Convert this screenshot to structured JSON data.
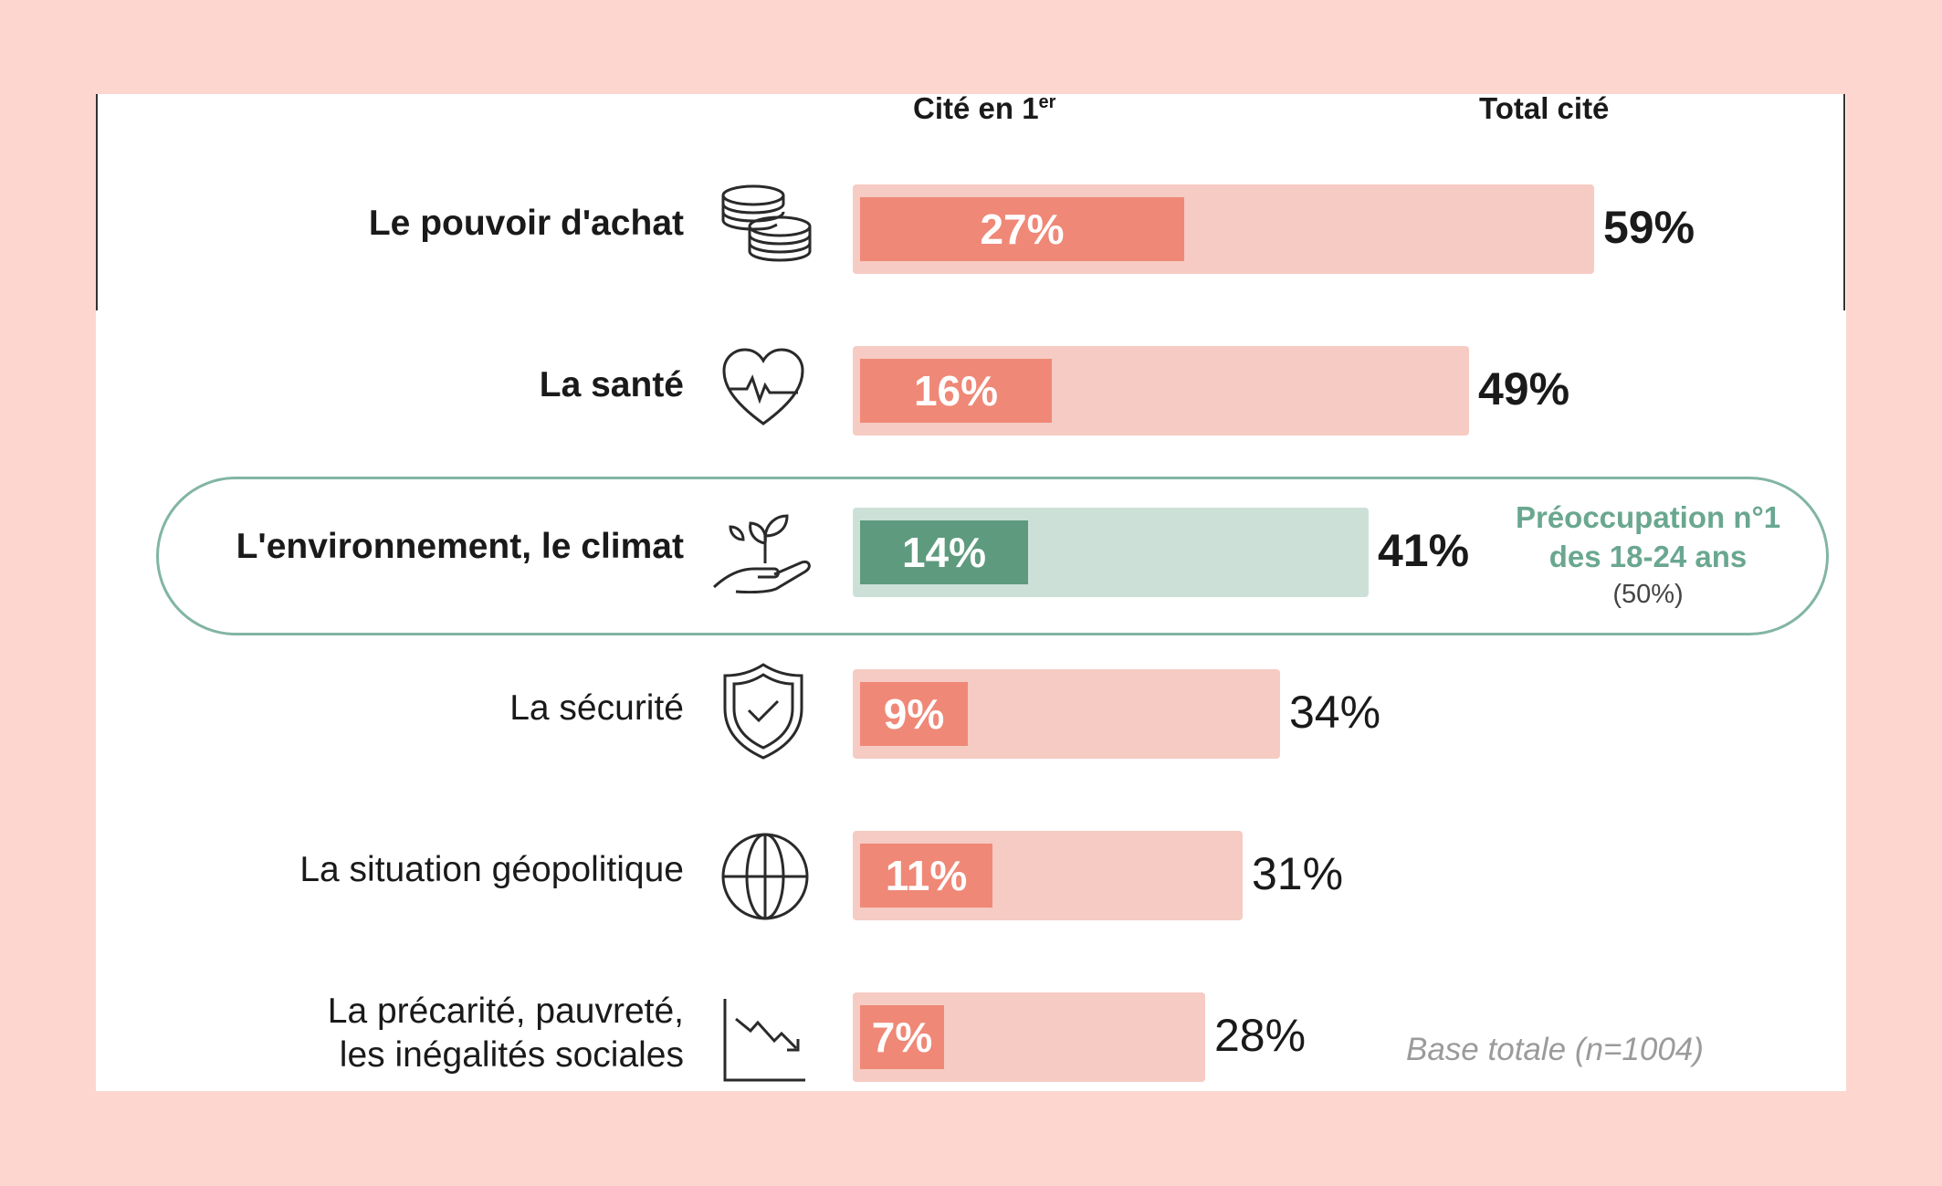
{
  "chart_data": {
    "type": "bar",
    "column_headers": {
      "first": "Cité en 1",
      "first_sup": "er",
      "total": "Total cité"
    },
    "categories": [
      "Le pouvoir d'achat",
      "La santé",
      "L'environnement, le climat",
      "La sécurité",
      "La situation géopolitique",
      "La précarité, pauvreté, les inégalités sociales"
    ],
    "category_lines": [
      [
        "Le pouvoir d'achat"
      ],
      [
        "La santé"
      ],
      [
        "L'environnement, le climat"
      ],
      [
        "La sécurité"
      ],
      [
        "La situation géopolitique"
      ],
      [
        "La précarité, pauvreté,",
        "les inégalités sociales"
      ]
    ],
    "series": [
      {
        "name": "Cité en 1er",
        "values": [
          27,
          16,
          14,
          9,
          11,
          7
        ]
      },
      {
        "name": "Total cité",
        "values": [
          59,
          49,
          41,
          34,
          31,
          28
        ]
      }
    ],
    "first_labels": [
      "27%",
      "16%",
      "14%",
      "9%",
      "11%",
      "7%"
    ],
    "total_labels": [
      "59%",
      "49%",
      "41%",
      "34%",
      "31%",
      "28%"
    ],
    "highlight_index": 2,
    "bold_rows": [
      0,
      1,
      2
    ],
    "icons": [
      "coins-icon",
      "heart-pulse-icon",
      "hand-plant-icon",
      "shield-check-icon",
      "globe-icon",
      "chart-down-icon"
    ],
    "colors": {
      "first_bar": "#ef8877",
      "total_bar": "#f6cbc3",
      "highlight_first_bar": "#5e9a7e",
      "highlight_total_bar": "#cde0d8",
      "highlight_outline": "#82b5a4",
      "callout_text": "#6aa790",
      "background": "#fdd6d0"
    }
  },
  "callout": {
    "line1": "Préoccupation n°1",
    "line2": "des 18-24 ans",
    "line3": "(50%)"
  },
  "note": "Base totale (n=1004)"
}
